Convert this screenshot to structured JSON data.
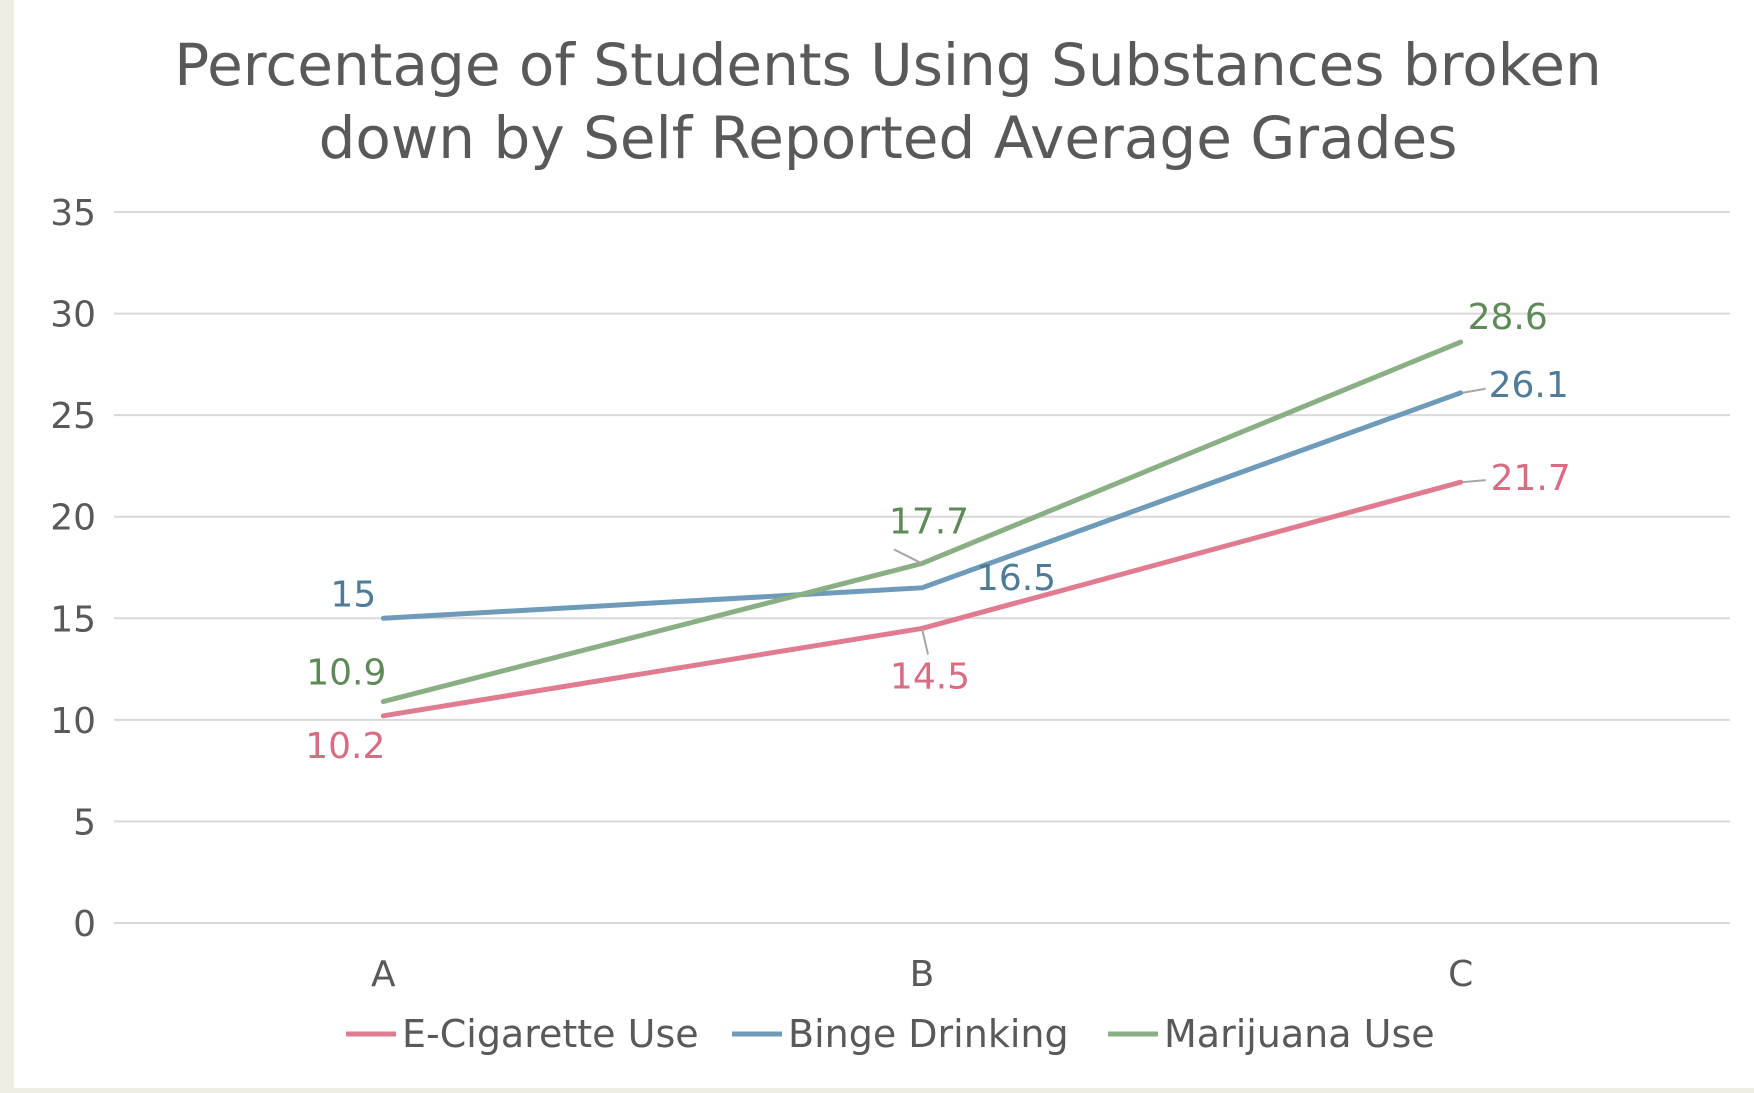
{
  "chart_data": {
    "type": "line",
    "title_lines": [
      "Percentage of Students Using Substances broken",
      "down by Self Reported Average Grades"
    ],
    "xlabel": "",
    "ylabel": "",
    "categories": [
      "A",
      "B",
      "C"
    ],
    "ylim": [
      0,
      35
    ],
    "yticks": [
      0,
      5,
      10,
      15,
      20,
      25,
      30,
      35
    ],
    "grid": true,
    "legend_position": "bottom",
    "series": [
      {
        "name": "E-Cigarette Use",
        "values": [
          10.2,
          14.5,
          21.7
        ],
        "labels": [
          "10.2",
          "14.5",
          "21.7"
        ],
        "color": "#E07B91"
      },
      {
        "name": "Binge Drinking",
        "values": [
          15,
          16.5,
          26.1
        ],
        "labels": [
          "15",
          "16.5",
          "26.1"
        ],
        "color": "#6E9BBA"
      },
      {
        "name": "Marijuana Use",
        "values": [
          10.9,
          17.7,
          28.6
        ],
        "labels": [
          "10.9",
          "17.7",
          "28.6"
        ],
        "color": "#8BAF85"
      }
    ]
  },
  "label_colors": [
    "#D86C82",
    "#4F7B99",
    "#5E8A58"
  ],
  "axis_text_color": "#595959",
  "gridline_color": "#D9D9D9"
}
